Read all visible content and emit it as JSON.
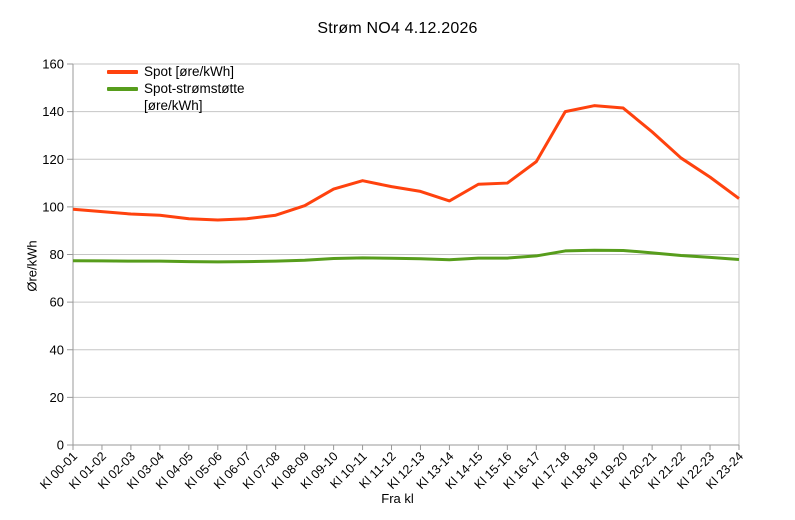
{
  "chart": {
    "title": "Strøm NO4 4.12.2026",
    "x_axis_title": "Fra kl",
    "y_axis_title": "Øre/kWh",
    "legend": {
      "position": "top-left-inside",
      "items": [
        {
          "lines": [
            "Spot [øre/kWh]"
          ],
          "color": "#ff420e"
        },
        {
          "lines": [
            "Spot-strømstøtte",
            "[øre/kWh]"
          ],
          "color": "#579d1c"
        }
      ]
    }
  },
  "chart_data": {
    "type": "line",
    "title": "Strøm NO4 4.12.2026",
    "xlabel": "Fra kl",
    "ylabel": "Øre/kWh",
    "ylim": [
      0,
      160
    ],
    "ytick_step": 20,
    "yticks": [
      0,
      20,
      40,
      60,
      80,
      100,
      120,
      140,
      160
    ],
    "grid": "horizontal-only",
    "legend_position": "top-left-inside",
    "categories": [
      "Kl 00-01",
      "Kl 01-02",
      "Kl 02-03",
      "Kl 03-04",
      "Kl 04-05",
      "Kl 05-06",
      "Kl 06-07",
      "Kl 07-08",
      "Kl 08-09",
      "Kl 09-10",
      "Kl 10-11",
      "Kl 11-12",
      "Kl 12-13",
      "Kl 13-14",
      "Kl 14-15",
      "Kl 15-16",
      "Kl 16-17",
      "Kl 17-18",
      "Kl 18-19",
      "Kl 19-20",
      "Kl 20-21",
      "Kl 21-22",
      "Kl 22-23",
      "Kl 23-24"
    ],
    "series": [
      {
        "name": "Spot [øre/kWh]",
        "color": "#ff420e",
        "values": [
          99,
          98,
          97,
          96.5,
          95,
          94.5,
          95,
          96.5,
          100.5,
          107.5,
          111,
          108.5,
          106.5,
          102.5,
          109.5,
          110,
          119,
          140,
          142.5,
          141.5,
          131.5,
          120.5,
          112.5,
          103.5
        ]
      },
      {
        "name": "Spot-strømstøtte [øre/kWh]",
        "color": "#579d1c",
        "values": [
          77.4,
          77.3,
          77.2,
          77.2,
          77,
          76.9,
          77,
          77.2,
          77.6,
          78.3,
          78.6,
          78.4,
          78.2,
          77.8,
          78.5,
          78.5,
          79.4,
          81.5,
          81.8,
          81.7,
          80.7,
          79.6,
          78.8,
          77.9
        ]
      }
    ]
  },
  "colors": {
    "background": "#ffffff",
    "grid": "#c6c6c6",
    "axis": "#999999",
    "text": "#000000",
    "spot_line": "#ff420e",
    "stromstotte_line": "#579d1c"
  }
}
